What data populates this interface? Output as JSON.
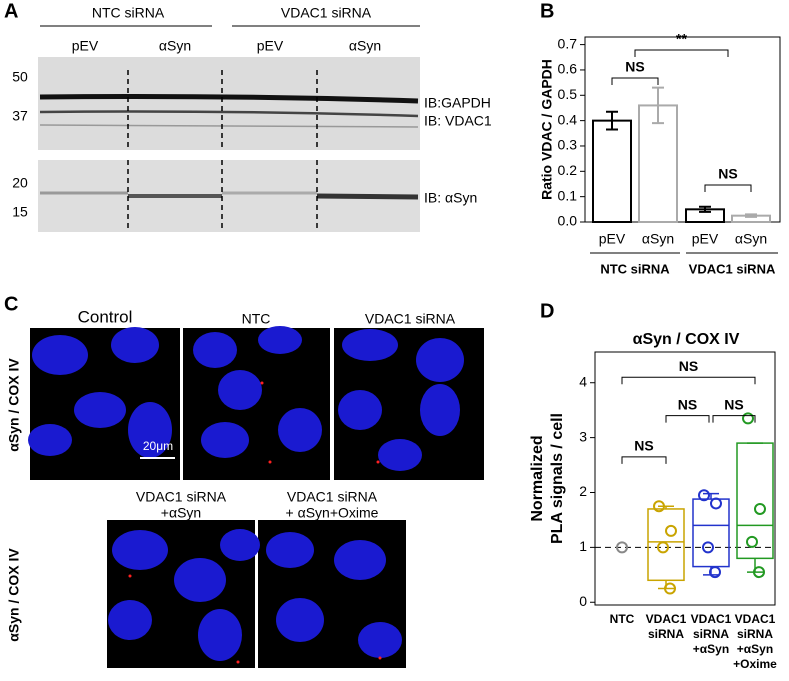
{
  "panel_a": {
    "letter": "A",
    "groups": [
      "NTC siRNA",
      "VDAC1 siRNA"
    ],
    "lanes": [
      "pEV",
      "αSyn",
      "pEV",
      "αSyn"
    ],
    "markers": [
      "50",
      "37",
      "20",
      "15"
    ],
    "blots": [
      "IB:GAPDH",
      "IB: VDAC1",
      "IB: αSyn"
    ]
  },
  "panel_c": {
    "letter": "C",
    "row_label": "αSyn / COX IV",
    "images": [
      "Control",
      "NTC",
      "VDAC1 siRNA"
    ],
    "images_bottom": [
      [
        "VDAC1 siRNA",
        "+αSyn"
      ],
      [
        "VDAC1 siRNA",
        "+ αSyn+Oxime"
      ]
    ],
    "scale_bar": "20μm"
  },
  "chart_data": [
    {
      "type": "bar",
      "letter": "B",
      "ylabel": "Ratio VDAC / GAPDH",
      "categories": [
        "pEV",
        "αSyn",
        "pEV",
        "αSyn"
      ],
      "groups": [
        "NTC siRNA",
        "VDAC1 siRNA"
      ],
      "values": [
        0.4,
        0.46,
        0.05,
        0.025
      ],
      "errors": [
        0.035,
        0.07,
        0.01,
        0.005
      ],
      "colors": [
        "#000000",
        "#aaaaaa",
        "#000000",
        "#aaaaaa"
      ],
      "ylim": [
        0,
        0.73
      ],
      "yticks": [
        {
          "value": 0,
          "label": "0.0"
        },
        0.1,
        0.2,
        0.3,
        0.4,
        0.5,
        0.6,
        0.7
      ],
      "annotations": [
        "NS",
        "**",
        "NS"
      ]
    },
    {
      "type": "box",
      "letter": "D",
      "title": "αSyn / COX IV",
      "ylabel": [
        "Normalized",
        "PLA signals / cell"
      ],
      "categories": [
        [
          "NTC"
        ],
        [
          "VDAC1",
          "siRNA"
        ],
        [
          "VDAC1",
          "siRNA",
          "+αSyn"
        ],
        [
          "VDAC1",
          "siRNA",
          "+αSyn",
          "+Oxime"
        ]
      ],
      "series": [
        {
          "color": "#888888",
          "points": [
            1
          ]
        },
        {
          "color": "#c9a400",
          "whislo": 0.25,
          "q1": 0.4,
          "median": 1.1,
          "q3": 1.7,
          "whishi": 1.75,
          "points": [
            1.75,
            1.3,
            1.0,
            0.25
          ]
        },
        {
          "color": "#2233cc",
          "whislo": 0.5,
          "q1": 0.65,
          "median": 1.4,
          "q3": 1.88,
          "whishi": 1.98,
          "points": [
            1.95,
            1.8,
            1.0,
            0.55
          ]
        },
        {
          "color": "#229922",
          "whislo": 0.55,
          "q1": 0.8,
          "median": 1.4,
          "q3": 2.9,
          "whishi": 2.9,
          "points": [
            3.35,
            1.7,
            1.1,
            0.55
          ]
        }
      ],
      "reference_line": 1,
      "ylim": [
        -0.05,
        4.56
      ],
      "yticks": [
        0,
        1,
        2,
        3,
        4
      ],
      "annotations": [
        "NS",
        "NS",
        "NS",
        "NS"
      ]
    }
  ]
}
